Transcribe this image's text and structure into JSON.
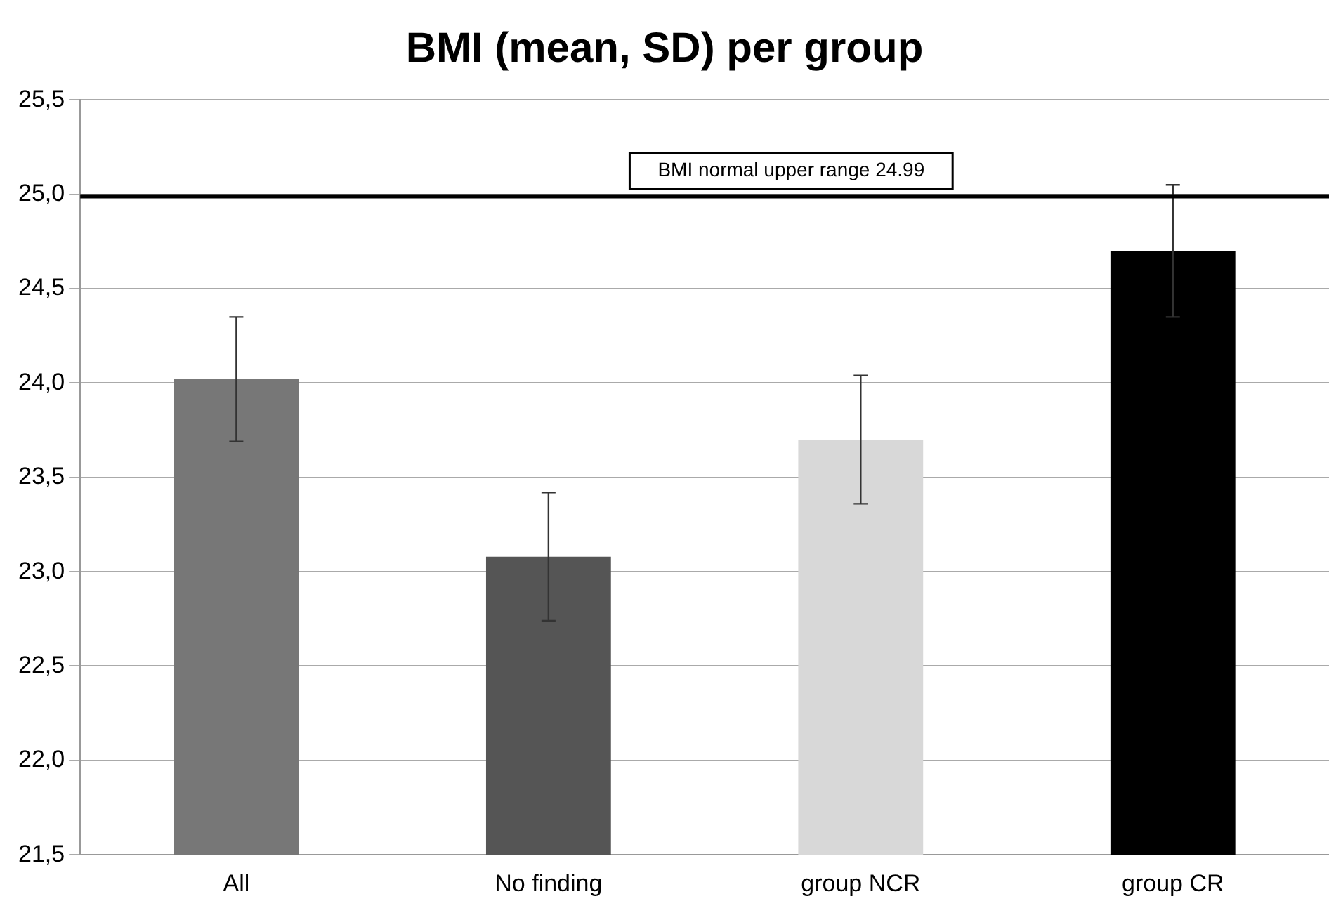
{
  "chart_data": {
    "type": "bar",
    "title": "BMI (mean, SD) per group",
    "categories": [
      "All",
      "No finding",
      "group NCR",
      "group CR"
    ],
    "values": [
      24.02,
      23.08,
      23.7,
      24.7
    ],
    "colors": [
      "#777777",
      "#555555",
      "#d8d8d8",
      "#000000"
    ],
    "errors": [
      0.33,
      0.34,
      0.34,
      0.35
    ],
    "ylim": [
      21.5,
      25.5
    ],
    "yticks": [
      {
        "value": 21.5,
        "label": "21,5"
      },
      {
        "value": 22,
        "label": "22,0"
      },
      {
        "value": 22.5,
        "label": "22,5"
      },
      {
        "value": 23,
        "label": "23,0"
      },
      {
        "value": 23.5,
        "label": "23,5"
      },
      {
        "value": 24,
        "label": "24,0"
      },
      {
        "value": 24.5,
        "label": "24,5"
      },
      {
        "value": 25,
        "label": "25,0"
      },
      {
        "value": 25.5,
        "label": "25,5"
      }
    ],
    "grid": "y",
    "legend": false,
    "ref_lines": [
      {
        "axis": "y",
        "value": 24.99,
        "label": "BMI normal upper range 24.99",
        "color": "#000000"
      }
    ]
  }
}
